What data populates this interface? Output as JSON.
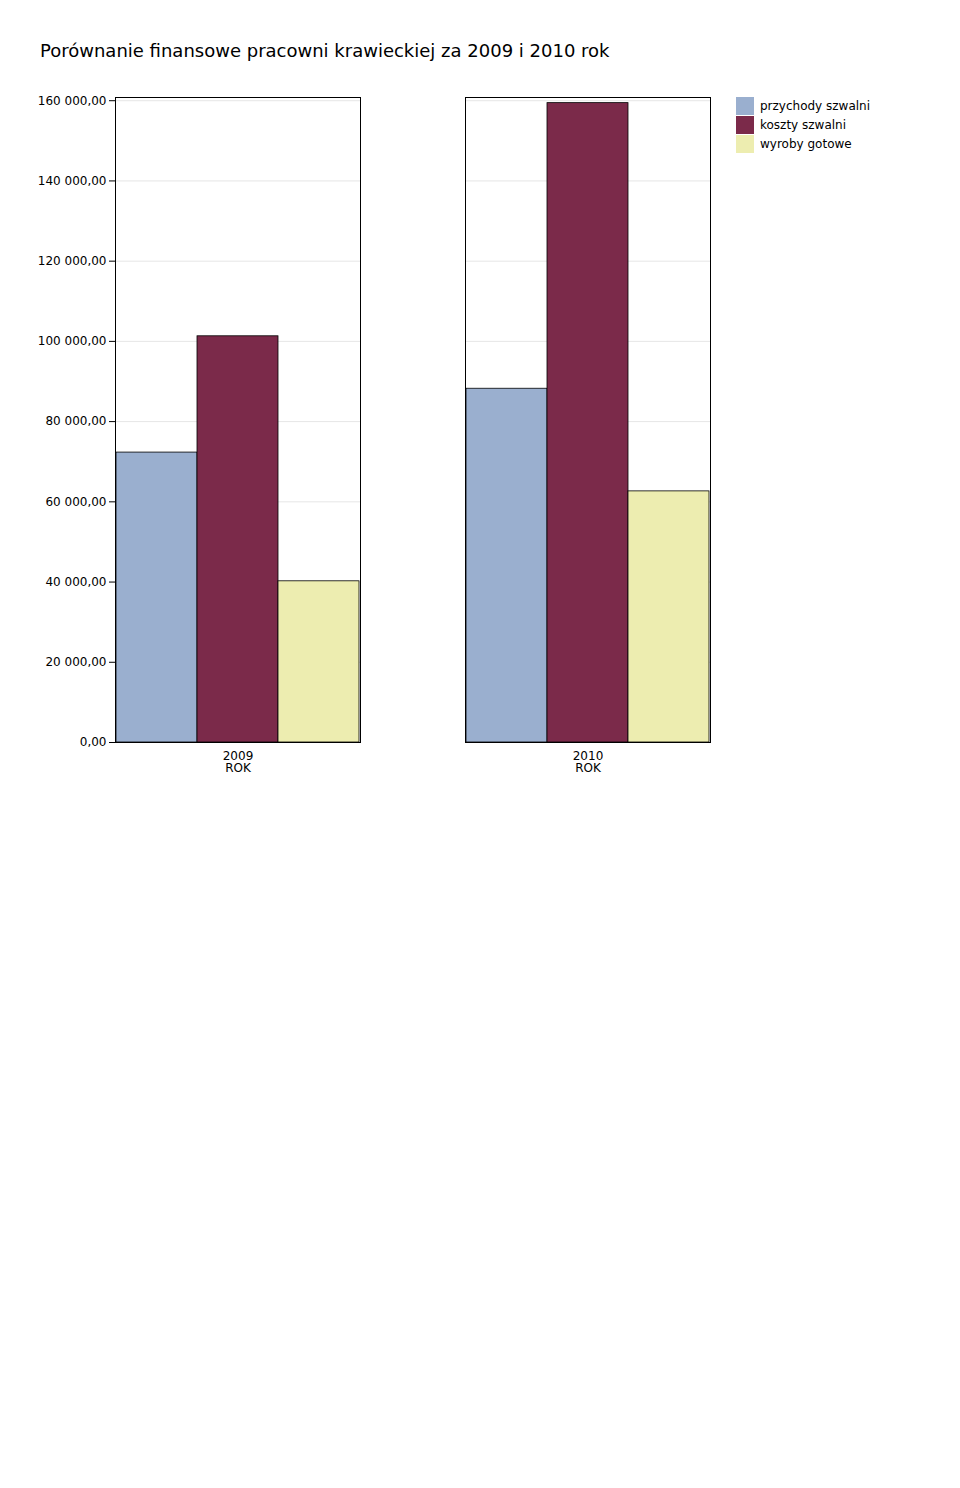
{
  "chart_data": {
    "type": "bar",
    "title": "Porównanie finansowe pracowni krawieckiej za 2009 i 2010 rok",
    "categories": [
      "2009\nROK",
      "2010\nROK"
    ],
    "series": [
      {
        "name": "przychody szwalni",
        "color": "#9AAFCF",
        "values": [
          72279.37,
          88193.2
        ]
      },
      {
        "name": "koszty szwalni",
        "color": "#7B2A4A",
        "values": [
          101267.93,
          159394.93
        ]
      },
      {
        "name": "wyroby gotowe",
        "color": "#EDEDB0",
        "values": [
          40186.08,
          62604.84
        ]
      }
    ],
    "ylim": [
      0,
      160800
    ],
    "yticks": [
      {
        "value": 0,
        "label": "0,00"
      },
      {
        "value": 20000,
        "label": "20 000,00"
      },
      {
        "value": 40000,
        "label": "40 000,00"
      },
      {
        "value": 60000,
        "label": "60 000,00"
      },
      {
        "value": 80000,
        "label": "80 000,00"
      },
      {
        "value": 100000,
        "label": "100 000,00"
      },
      {
        "value": 120000,
        "label": "120 000,00"
      },
      {
        "value": 140000,
        "label": "140 000,00"
      },
      {
        "value": 160000,
        "label": "160 000,00"
      }
    ],
    "grid": true,
    "legend": "right"
  }
}
